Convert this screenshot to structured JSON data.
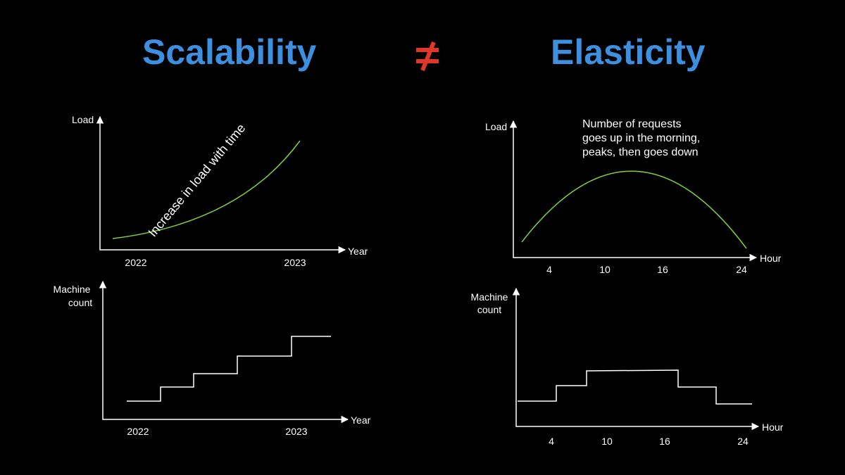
{
  "headings": {
    "left": "Scalability",
    "separator": "≠",
    "right": "Elasticity"
  },
  "colors": {
    "heading": "#3d8fe0",
    "separator": "#e0362c",
    "load_curve": "#7fcf3f",
    "axes_and_text": "#ffffff",
    "background": "#000000"
  },
  "scalability": {
    "load_chart": {
      "y_label": "Load",
      "x_label": "Year",
      "x_ticks": [
        "2022",
        "2023"
      ],
      "curve_label": "Increase in load with time"
    },
    "machine_chart": {
      "y_label_line1": "Machine",
      "y_label_line2": "count",
      "x_label": "Year",
      "x_ticks": [
        "2022",
        "2023"
      ]
    }
  },
  "elasticity": {
    "load_chart": {
      "y_label": "Load",
      "x_label": "Hour",
      "x_ticks": [
        "4",
        "10",
        "16",
        "24"
      ],
      "annotation_lines": [
        "Number of requests",
        "goes up in the morning,",
        "peaks, then goes down"
      ]
    },
    "machine_chart": {
      "y_label_line1": "Machine",
      "y_label_line2": "count",
      "x_label": "Hour",
      "x_ticks": [
        "4",
        "10",
        "16",
        "24"
      ]
    }
  }
}
